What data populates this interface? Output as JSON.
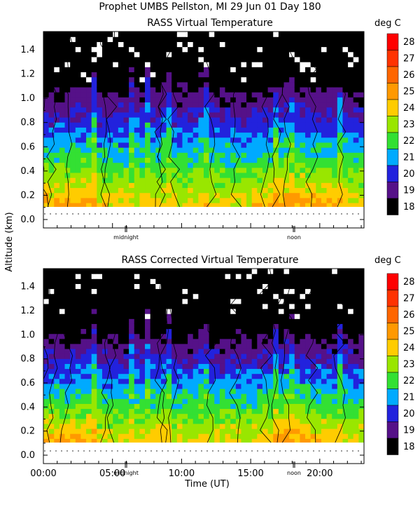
{
  "header": {
    "title": "Prophet  UMBS Pellston, MI  29 Jun 01 Day 180"
  },
  "chart_data": [
    {
      "type": "heatmap",
      "title": "RASS Virtual Temperature",
      "ylabel": "Altitude (km)",
      "units": "deg C",
      "ylim": [
        0.0,
        1.55
      ],
      "yticks": [
        "0.0",
        "0.2",
        "0.4",
        "0.6",
        "0.8",
        "1.0",
        "1.2",
        "1.4"
      ],
      "xlim": [
        0,
        24
      ],
      "annotations": [
        "midnight",
        "noon"
      ]
    },
    {
      "type": "heatmap",
      "title": "RASS Corrected Virtual Temperature",
      "xlabel": "Time (UT)",
      "ylabel": "Altitude (km)",
      "units": "deg C",
      "ylim": [
        0.0,
        1.55
      ],
      "yticks": [
        "0.0",
        "0.2",
        "0.4",
        "0.6",
        "0.8",
        "1.0",
        "1.2",
        "1.4"
      ],
      "xlim": [
        0,
        24
      ],
      "xticks": [
        "00:00",
        "05:00",
        "10:00",
        "15:00",
        "20:00"
      ],
      "annotations": [
        "midnight",
        "noon"
      ]
    }
  ],
  "colorbar": {
    "units": "deg C",
    "levels": [
      "28",
      "27",
      "26",
      "25",
      "24",
      "23",
      "22",
      "21",
      "20",
      "19",
      "18"
    ],
    "colors": [
      "#ff0000",
      "#ff3300",
      "#ff6600",
      "#ff9900",
      "#ffcc00",
      "#99e600",
      "#33e033",
      "#00aaff",
      "#2222dd",
      "#551188",
      "#000000"
    ]
  }
}
